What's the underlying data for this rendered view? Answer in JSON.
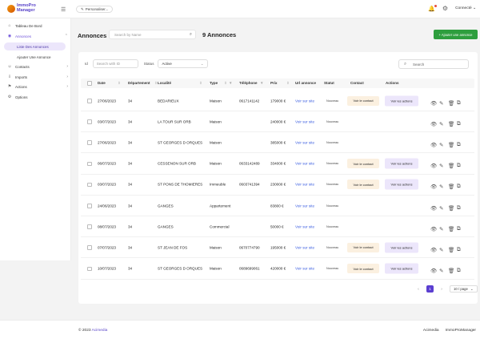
{
  "app": {
    "logo_line1": "ImmoPro",
    "logo_line2": "Manager"
  },
  "topbar": {
    "personalize_label": "Personaliser...",
    "user_status": "Connecté"
  },
  "sidebar": {
    "items": [
      {
        "label": "Tableau De Bord"
      },
      {
        "label": "Annonces"
      },
      {
        "label": "Liste Des Annonces"
      },
      {
        "label": "Ajouter Une Annonce"
      },
      {
        "label": "Contacts"
      },
      {
        "label": "Imports"
      },
      {
        "label": "Actions"
      },
      {
        "label": "Options"
      }
    ]
  },
  "header": {
    "title": "Annonces",
    "search_placeholder": "Search by Name",
    "count": "9 Annonces",
    "add_button": "+ Ajouter une annonce"
  },
  "filters": {
    "id_label": "Id",
    "id_placeholder": "Search with ID",
    "status_label": "Status",
    "status_value": "Active",
    "search_placeholder": "Search"
  },
  "table": {
    "columns": [
      "Date",
      "Département",
      "Localité",
      "Type",
      "Téléphone",
      "Prix",
      "Url annonce",
      "Statut",
      "Contact",
      "Actions"
    ],
    "contact_label": "Voir le contact",
    "actions_label": "Voir les actions",
    "rows": [
      {
        "date": "27/06/2023",
        "dept": "34",
        "locality": "BEDARIEUX",
        "type": "Maison",
        "phone": "0617141142",
        "price": "179000 €",
        "url": "Voir sur site",
        "status": "Nouveau",
        "has_contact": true,
        "has_actions": true
      },
      {
        "date": "03/07/2023",
        "dept": "34",
        "locality": "LA TOUR SUR ORB",
        "type": "Maison",
        "phone": "",
        "price": "240000 €",
        "url": "Voir sur site",
        "status": "Nouveau",
        "has_contact": false,
        "has_actions": false
      },
      {
        "date": "27/06/2023",
        "dept": "34",
        "locality": "ST GEORGES D ORQUES",
        "type": "Maison",
        "phone": "",
        "price": "385000 €",
        "url": "Voir sur site",
        "status": "Nouveau",
        "has_contact": false,
        "has_actions": false
      },
      {
        "date": "06/07/2023",
        "dept": "34",
        "locality": "CESSENON SUR ORB",
        "type": "Maison",
        "phone": "0633142489",
        "price": "334000 €",
        "url": "Voir sur site",
        "status": "Nouveau",
        "has_contact": true,
        "has_actions": true
      },
      {
        "date": "03/07/2023",
        "dept": "34",
        "locality": "ST PONS DE THOMIERES",
        "type": "Immeuble",
        "phone": "0603741394",
        "price": "230000 €",
        "url": "Voir sur site",
        "status": "Nouveau",
        "has_contact": true,
        "has_actions": true
      },
      {
        "date": "24/06/2023",
        "dept": "34",
        "locality": "GANGES",
        "type": "Appartement",
        "phone": "",
        "price": "83800 €",
        "url": "Voir sur site",
        "status": "Nouveau",
        "has_contact": false,
        "has_actions": false
      },
      {
        "date": "08/07/2023",
        "dept": "34",
        "locality": "GANGES",
        "type": "Commercial",
        "phone": "",
        "price": "50000 €",
        "url": "Voir sur site",
        "status": "Nouveau",
        "has_contact": false,
        "has_actions": false
      },
      {
        "date": "07/07/2023",
        "dept": "34",
        "locality": "ST JEAN DE FOS",
        "type": "Maison",
        "phone": "0670774790",
        "price": "195000 €",
        "url": "Voir sur site",
        "status": "Nouveau",
        "has_contact": true,
        "has_actions": true
      },
      {
        "date": "10/07/2023",
        "dept": "34",
        "locality": "ST GEORGES D ORQUES",
        "type": "Maison",
        "phone": "0689699061",
        "price": "420000 €",
        "url": "Voir sur site",
        "status": "Nouveau",
        "has_contact": true,
        "has_actions": true
      }
    ]
  },
  "pagination": {
    "current_page": "1",
    "page_size": "10 / page"
  },
  "footer": {
    "copyright": "© 2023 ",
    "brand": "Acimedia",
    "links": [
      "Acimedia",
      "ImmoProManager"
    ]
  }
}
